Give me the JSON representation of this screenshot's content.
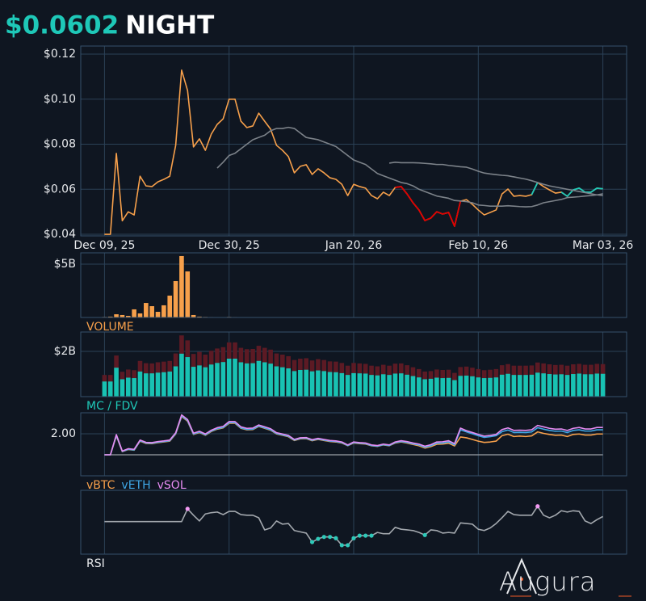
{
  "header": {
    "price": "$0.0602",
    "symbol": "NIGHT"
  },
  "brand": "Augura",
  "chart_data": [
    {
      "type": "line",
      "x": [
        "2025-12-09",
        "2025-12-10",
        "2025-12-11",
        "2025-12-12",
        "2025-12-13",
        "2025-12-14",
        "2025-12-15",
        "2025-12-16",
        "2025-12-17",
        "2025-12-18",
        "2025-12-19",
        "2025-12-20",
        "2025-12-21",
        "2025-12-22",
        "2025-12-23",
        "2025-12-24",
        "2025-12-25",
        "2025-12-26",
        "2025-12-27",
        "2025-12-28",
        "2025-12-29",
        "2025-12-30",
        "2025-12-31",
        "2026-01-01",
        "2026-01-02",
        "2026-01-03",
        "2026-01-04",
        "2026-01-05",
        "2026-01-06",
        "2026-01-07",
        "2026-01-08",
        "2026-01-09",
        "2026-01-10",
        "2026-01-11",
        "2026-01-12",
        "2026-01-13",
        "2026-01-14",
        "2026-01-15",
        "2026-01-16",
        "2026-01-17",
        "2026-01-18",
        "2026-01-19",
        "2026-01-20",
        "2026-01-21",
        "2026-01-22",
        "2026-01-23",
        "2026-01-24",
        "2026-01-25",
        "2026-01-26",
        "2026-01-27",
        "2026-01-28",
        "2026-01-29",
        "2026-01-30",
        "2026-01-31",
        "2026-02-01",
        "2026-02-02",
        "2026-02-03",
        "2026-02-04",
        "2026-02-05",
        "2026-02-06",
        "2026-02-07",
        "2026-02-08",
        "2026-02-09",
        "2026-02-10",
        "2026-02-11",
        "2026-02-12",
        "2026-02-13",
        "2026-02-14",
        "2026-02-15",
        "2026-02-16",
        "2026-02-17",
        "2026-02-18",
        "2026-02-19",
        "2026-02-20",
        "2026-02-21",
        "2026-02-22",
        "2026-02-23",
        "2026-02-24",
        "2026-02-25",
        "2026-02-26",
        "2026-02-27",
        "2026-02-28",
        "2026-03-01",
        "2026-03-02",
        "2026-03-03"
      ],
      "xlim": [
        "2025-12-05",
        "2026-03-07"
      ],
      "xticks": [
        {
          "value": "2025-12-09",
          "label": "Dec 09, 25"
        },
        {
          "value": "2025-12-30",
          "label": "Dec 30, 25"
        },
        {
          "value": "2026-01-20",
          "label": "Jan 20, 26"
        },
        {
          "value": "2026-02-10",
          "label": "Feb 10, 26"
        },
        {
          "value": "2026-03-03",
          "label": "Mar 03, 26"
        }
      ],
      "ylim": [
        0.0393,
        0.1236
      ],
      "yticks": [
        {
          "value": 0.04,
          "label": "$0.04"
        },
        {
          "value": 0.06,
          "label": "$0.06"
        },
        {
          "value": 0.08,
          "label": "$0.08"
        },
        {
          "value": 0.1,
          "label": "$0.10"
        },
        {
          "value": 0.12,
          "label": "$0.12"
        }
      ],
      "grid": true,
      "series": [
        {
          "color": "#f7a04b",
          "values": [
            0.04,
            0.04,
            0.0759,
            0.046,
            0.05,
            0.0486,
            0.0658,
            0.0615,
            0.0612,
            0.0633,
            0.0644,
            0.0658,
            0.0795,
            0.1129,
            0.1039,
            0.0788,
            0.0824,
            0.0773,
            0.0845,
            0.0888,
            0.0913,
            0.1,
            0.1,
            0.0902,
            0.0874,
            0.0881,
            0.0938,
            0.0902,
            0.0867,
            0.0795,
            0.0773,
            0.0745,
            0.0673,
            0.0702,
            0.0709,
            0.0666,
            0.0691,
            0.0673,
            0.0651,
            0.0644,
            0.0622,
            0.0572,
            0.0622,
            0.0612,
            0.0605,
            0.0572,
            0.0558,
            0.0587,
            0.0572,
            0.0608,
            0.0612,
            0.0579,
            0.054,
            0.0508,
            0.0461,
            0.0472,
            0.05,
            0.049,
            0.0497,
            0.0436,
            0.0547,
            0.0554,
            0.0533,
            0.0508,
            0.0486,
            0.0497,
            0.0508,
            0.0579,
            0.0601,
            0.0569,
            0.0572,
            0.0569,
            0.0576,
            0.063,
            0.0612,
            0.0597,
            0.0583,
            0.0587,
            0.0569,
            0.0597,
            0.0605,
            0.0587,
            0.0587,
            0.0605,
            0.0602
          ],
          "color_runs": [
            {
              "color": "#e00000",
              "from": "2026-01-27",
              "to": "2026-02-07"
            },
            {
              "color": "#1fc9b8",
              "from": "2026-02-19",
              "to": "2026-02-20"
            },
            {
              "color": "#1fc9b8",
              "from": "2026-02-24",
              "to": "2026-03-03"
            }
          ]
        },
        {
          "color": "#7c8289",
          "values": [
            null,
            null,
            null,
            null,
            null,
            null,
            null,
            null,
            null,
            null,
            null,
            null,
            null,
            null,
            null,
            null,
            null,
            null,
            null,
            0.0694,
            0.072,
            0.075,
            0.076,
            0.078,
            0.08,
            0.082,
            0.083,
            0.084,
            0.086,
            0.087,
            0.087,
            0.0875,
            0.087,
            0.085,
            0.083,
            0.0825,
            0.082,
            0.081,
            0.08,
            0.079,
            0.077,
            0.075,
            0.073,
            0.072,
            0.071,
            0.069,
            0.067,
            0.066,
            0.065,
            0.064,
            0.063,
            0.0625,
            0.0615,
            0.06,
            0.059,
            0.058,
            0.057,
            0.0565,
            0.056,
            0.055,
            0.0548,
            0.0545,
            0.054,
            0.053,
            0.0528,
            0.0525,
            0.0525,
            0.0525,
            0.0527,
            0.0525,
            0.0523,
            0.0522,
            0.0523,
            0.053,
            0.054,
            0.0545,
            0.055,
            0.0555,
            0.0563,
            0.0565,
            0.0567,
            0.057,
            0.0572,
            0.0575,
            0.058
          ]
        },
        {
          "color": "#7c8289",
          "values": [
            null,
            null,
            null,
            null,
            null,
            null,
            null,
            null,
            null,
            null,
            null,
            null,
            null,
            null,
            null,
            null,
            null,
            null,
            null,
            null,
            null,
            null,
            null,
            null,
            null,
            null,
            null,
            null,
            null,
            null,
            null,
            null,
            null,
            null,
            null,
            null,
            null,
            null,
            null,
            null,
            null,
            null,
            null,
            null,
            null,
            null,
            null,
            null,
            0.0716,
            0.072,
            0.0718,
            0.0718,
            0.0718,
            0.0717,
            0.0715,
            0.0713,
            0.071,
            0.071,
            0.0706,
            0.0703,
            0.07,
            0.0698,
            0.069,
            0.068,
            0.0672,
            0.0668,
            0.0665,
            0.0662,
            0.066,
            0.0655,
            0.065,
            0.0645,
            0.0638,
            0.063,
            0.0622,
            0.0615,
            0.061,
            0.0605,
            0.06,
            0.0595,
            0.059,
            0.0585,
            0.058,
            0.0575,
            0.0572
          ]
        }
      ]
    },
    {
      "type": "bar",
      "title": "VOLUME",
      "title_color": "#f7a04b",
      "color": "#f7a04b",
      "ylim": [
        0,
        6.06
      ],
      "yticks": [
        {
          "value": 5,
          "label": "$5B"
        }
      ],
      "grid": true,
      "values": [
        0.05,
        0.08,
        0.3,
        0.23,
        0.15,
        0.76,
        0.38,
        1.36,
        1.06,
        0.53,
        1.14,
        2.05,
        3.41,
        5.76,
        4.32,
        0.23,
        0.08,
        0.05,
        0.04,
        0.03,
        0.03,
        0.05,
        0.04,
        0.03,
        0.02,
        0,
        0,
        0,
        0,
        0,
        0,
        0,
        0,
        0,
        0,
        0,
        0,
        0,
        0,
        0,
        0,
        0,
        0,
        0,
        0,
        0,
        0,
        0,
        0,
        0,
        0,
        0,
        0,
        0,
        0,
        0,
        0,
        0,
        0,
        0,
        0,
        0,
        0,
        0,
        0,
        0,
        0,
        0,
        0,
        0,
        0,
        0,
        0,
        0,
        0,
        0,
        0,
        0,
        0,
        0,
        0,
        0,
        0,
        0,
        0
      ]
    },
    {
      "type": "bar",
      "title": "MC / FDV",
      "title_color": "#1fc9b8",
      "ylim": [
        0,
        2.86
      ],
      "yticks": [
        {
          "value": 2,
          "label": "$2B"
        }
      ],
      "grid": true,
      "series": [
        {
          "color": "#5c1a24",
          "values": [
            0.96,
            0.96,
            1.82,
            1.1,
            1.2,
            1.17,
            1.58,
            1.48,
            1.47,
            1.52,
            1.55,
            1.58,
            1.91,
            2.71,
            2.49,
            1.89,
            1.98,
            1.86,
            2.03,
            2.13,
            2.19,
            2.4,
            2.4,
            2.16,
            2.1,
            2.11,
            2.25,
            2.16,
            2.08,
            1.91,
            1.86,
            1.79,
            1.62,
            1.68,
            1.7,
            1.6,
            1.66,
            1.62,
            1.56,
            1.55,
            1.49,
            1.37,
            1.49,
            1.47,
            1.45,
            1.37,
            1.34,
            1.41,
            1.37,
            1.46,
            1.47,
            1.39,
            1.3,
            1.22,
            1.11,
            1.13,
            1.2,
            1.18,
            1.19,
            1.05,
            1.31,
            1.33,
            1.28,
            1.22,
            1.17,
            1.19,
            1.22,
            1.39,
            1.44,
            1.37,
            1.37,
            1.37,
            1.38,
            1.51,
            1.47,
            1.43,
            1.4,
            1.41,
            1.37,
            1.43,
            1.45,
            1.41,
            1.41,
            1.45,
            1.44
          ]
        },
        {
          "color": "#18c2b3",
          "values": [
            0.67,
            0.67,
            1.28,
            0.77,
            0.84,
            0.82,
            1.11,
            1.03,
            1.03,
            1.06,
            1.08,
            1.11,
            1.34,
            1.9,
            1.75,
            1.32,
            1.38,
            1.3,
            1.42,
            1.49,
            1.53,
            1.68,
            1.68,
            1.52,
            1.47,
            1.48,
            1.58,
            1.52,
            1.46,
            1.34,
            1.3,
            1.25,
            1.13,
            1.18,
            1.19,
            1.12,
            1.16,
            1.13,
            1.09,
            1.08,
            1.04,
            0.96,
            1.04,
            1.03,
            1.02,
            0.96,
            0.94,
            0.99,
            0.96,
            1.02,
            1.03,
            0.97,
            0.91,
            0.85,
            0.77,
            0.79,
            0.84,
            0.82,
            0.83,
            0.73,
            0.92,
            0.93,
            0.9,
            0.85,
            0.82,
            0.83,
            0.85,
            0.97,
            1.01,
            0.96,
            0.96,
            0.96,
            0.97,
            1.06,
            1.03,
            1.0,
            0.98,
            0.99,
            0.96,
            1.0,
            1.02,
            0.99,
            0.99,
            1.02,
            1.01
          ]
        }
      ]
    },
    {
      "type": "line",
      "ylim": [
        0,
        3
      ],
      "yticks": [
        {
          "value": 2,
          "label": "2.00"
        }
      ],
      "grid": true,
      "reference_line": {
        "value": 1,
        "color": "#9aa0a6"
      },
      "series": [
        {
          "name": "vBTC",
          "color": "#f7a04b",
          "values": [
            1.0,
            1.0,
            1.9,
            1.15,
            1.25,
            1.22,
            1.65,
            1.54,
            1.53,
            1.58,
            1.61,
            1.65,
            1.99,
            2.82,
            2.6,
            1.97,
            2.06,
            1.93,
            2.11,
            2.22,
            2.28,
            2.5,
            2.5,
            2.26,
            2.19,
            2.2,
            2.35,
            2.26,
            2.17,
            1.99,
            1.93,
            1.86,
            1.68,
            1.76,
            1.77,
            1.67,
            1.73,
            1.68,
            1.63,
            1.61,
            1.56,
            1.43,
            1.56,
            1.53,
            1.51,
            1.43,
            1.4,
            1.47,
            1.43,
            1.56,
            1.61,
            1.56,
            1.49,
            1.43,
            1.32,
            1.39,
            1.5,
            1.51,
            1.55,
            1.42,
            1.85,
            1.81,
            1.73,
            1.65,
            1.59,
            1.61,
            1.65,
            1.91,
            1.98,
            1.87,
            1.89,
            1.87,
            1.9,
            2.09,
            2.02,
            1.97,
            1.93,
            1.94,
            1.87,
            1.97,
            1.99,
            1.94,
            1.94,
            1.99,
            1.99
          ]
        },
        {
          "name": "vETH",
          "color": "#3fa7e6",
          "values": [
            1.0,
            1.0,
            1.92,
            1.16,
            1.26,
            1.23,
            1.67,
            1.56,
            1.55,
            1.6,
            1.63,
            1.67,
            2.01,
            2.85,
            2.63,
            1.99,
            2.08,
            1.95,
            2.13,
            2.24,
            2.3,
            2.53,
            2.53,
            2.28,
            2.21,
            2.22,
            2.37,
            2.28,
            2.19,
            2.01,
            1.95,
            1.88,
            1.7,
            1.78,
            1.79,
            1.69,
            1.75,
            1.7,
            1.65,
            1.63,
            1.58,
            1.44,
            1.58,
            1.55,
            1.53,
            1.44,
            1.41,
            1.48,
            1.44,
            1.58,
            1.63,
            1.59,
            1.52,
            1.47,
            1.36,
            1.43,
            1.55,
            1.56,
            1.61,
            1.47,
            2.19,
            2.09,
            2.0,
            1.91,
            1.83,
            1.86,
            1.91,
            2.1,
            2.18,
            2.06,
            2.07,
            2.06,
            2.09,
            2.29,
            2.22,
            2.16,
            2.12,
            2.13,
            2.06,
            2.16,
            2.19,
            2.13,
            2.13,
            2.19,
            2.19
          ]
        },
        {
          "name": "vSOL",
          "color": "#e68cf2",
          "values": [
            1.0,
            1.0,
            1.96,
            1.18,
            1.29,
            1.26,
            1.7,
            1.59,
            1.58,
            1.63,
            1.66,
            1.7,
            2.05,
            2.9,
            2.68,
            2.03,
            2.12,
            1.99,
            2.17,
            2.29,
            2.35,
            2.58,
            2.58,
            2.33,
            2.26,
            2.27,
            2.42,
            2.33,
            2.24,
            2.05,
            1.99,
            1.92,
            1.73,
            1.81,
            1.82,
            1.72,
            1.78,
            1.73,
            1.68,
            1.66,
            1.61,
            1.47,
            1.61,
            1.58,
            1.56,
            1.47,
            1.44,
            1.51,
            1.47,
            1.61,
            1.67,
            1.63,
            1.56,
            1.51,
            1.41,
            1.48,
            1.61,
            1.62,
            1.67,
            1.53,
            2.27,
            2.15,
            2.06,
            1.97,
            1.89,
            1.92,
            1.97,
            2.2,
            2.28,
            2.16,
            2.17,
            2.16,
            2.19,
            2.4,
            2.33,
            2.26,
            2.22,
            2.23,
            2.16,
            2.26,
            2.3,
            2.23,
            2.23,
            2.3,
            2.3
          ]
        }
      ]
    },
    {
      "type": "line",
      "title": "RSI",
      "title_color": "#e8eaed",
      "color": "#a3a8ae",
      "ylim": [
        0,
        100
      ],
      "overbought": {
        "value": 70,
        "color": "#f29af2"
      },
      "oversold": {
        "value": 30,
        "color": "#2ec9b9"
      },
      "values": [
        51,
        51,
        51,
        51,
        51,
        51,
        51,
        51,
        51,
        51,
        51,
        51,
        51,
        51,
        71,
        61,
        52,
        63,
        65,
        66,
        62,
        67,
        67,
        62,
        61,
        61,
        57,
        38,
        41,
        52,
        47,
        48,
        37,
        35,
        33,
        19,
        24,
        27,
        27,
        25,
        14,
        14,
        25,
        29,
        29,
        29,
        34,
        32,
        32,
        42,
        39,
        38,
        37,
        34,
        30,
        38,
        37,
        33,
        34,
        33,
        49,
        48,
        47,
        39,
        37,
        41,
        48,
        57,
        67,
        62,
        61,
        61,
        61,
        75,
        61,
        57,
        61,
        68,
        66,
        68,
        67,
        52,
        48,
        54,
        59
      ]
    }
  ]
}
